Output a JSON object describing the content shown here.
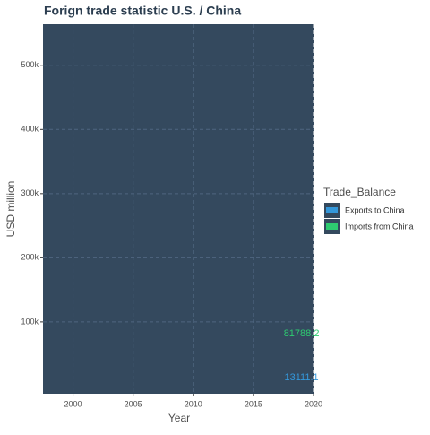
{
  "chart_data": {
    "type": "line",
    "title": "Forign trade statistic U.S. / China",
    "x_label": "Year",
    "y_label": "USD million",
    "x": [
      2019
    ],
    "series": [
      {
        "name": "Exports to China",
        "color": "#3498db",
        "values": [
          13111.1
        ]
      },
      {
        "name": "Imports from China",
        "color": "#2ecc71",
        "values": [
          81788.2
        ]
      }
    ],
    "legend_title": "Trade_Balance",
    "legend": "right",
    "xlim": [
      1997.5,
      2020
    ],
    "xticks": [
      2000,
      2005,
      2010,
      2015,
      2020
    ],
    "ylim": [
      -12000,
      564000
    ],
    "yticks": [
      {
        "value": 100000,
        "label": "100k"
      },
      {
        "value": 200000,
        "label": "200k"
      },
      {
        "value": 300000,
        "label": "300k"
      },
      {
        "value": 400000,
        "label": "400k"
      },
      {
        "value": 500000,
        "label": "500k"
      }
    ],
    "grid": true
  }
}
